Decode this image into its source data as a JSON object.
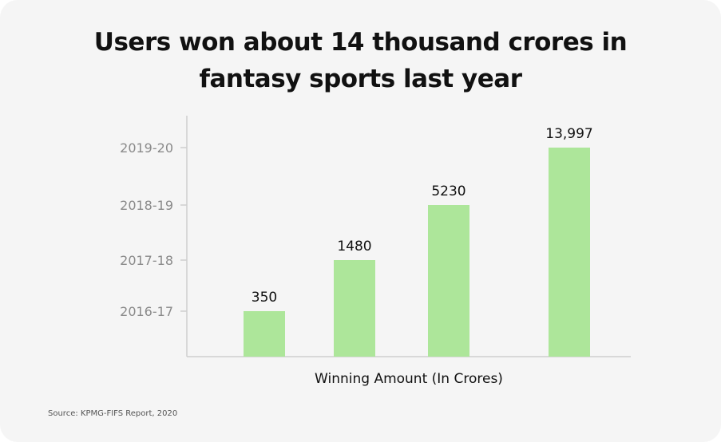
{
  "title_lines": [
    "Users won about 14 thousand crores in",
    "fantasy sports last year"
  ],
  "source": "Source: KPMG-FIFS Report, 2020",
  "bar_color": "#ade69a",
  "chart_data": {
    "type": "bar",
    "title": "Users won about 14 thousand crores in fantasy sports last year",
    "xlabel": "Winning Amount (In Crores)",
    "ylabel": "",
    "categories": [
      "2016-17",
      "2017-18",
      "2018-19",
      "2019-20"
    ],
    "values": [
      350,
      1480,
      5230,
      13997
    ],
    "value_labels": [
      "350",
      "1480",
      "5230",
      "13,997"
    ],
    "legend": "none",
    "grid": false
  }
}
